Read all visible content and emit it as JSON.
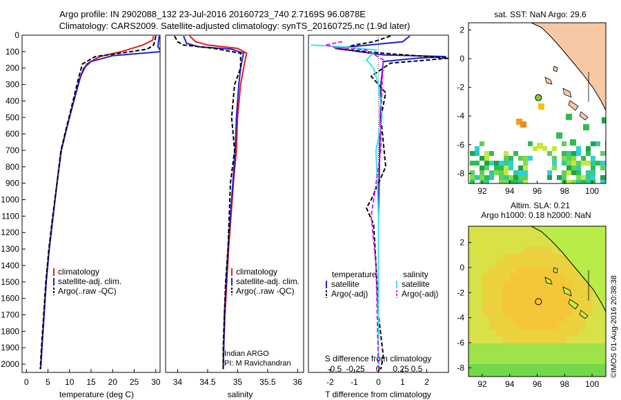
{
  "header": {
    "title_line1": "Argo profile: IN 2902088_132 23-Jul-2016 20160723_740 2.7169S 96.0878E",
    "title_line2": "Climatology: CARS2009. Satellite-adjusted climatology: synTS_20160725.nc (1.9d later)"
  },
  "colors": {
    "climatology": "#e41a1c",
    "satellite": "#1f1fd0",
    "argo": "#000000",
    "satellite_s": "#33e6ee",
    "argo_s": "#e01ee0",
    "land": "#f7c8a4"
  },
  "chart_data": [
    {
      "type": "line",
      "id": "temperature-profile",
      "xlabel": "temperature (deg C)",
      "ylim": [
        2050,
        0
      ],
      "xlim": [
        -1,
        31
      ],
      "xticks": [
        0,
        5,
        10,
        15,
        20,
        25,
        30
      ],
      "yticks": [
        0,
        100,
        200,
        300,
        400,
        500,
        600,
        700,
        800,
        900,
        1000,
        1100,
        1200,
        1300,
        1400,
        1500,
        1600,
        1700,
        1800,
        1900,
        2000
      ],
      "legend": [
        "climatology",
        "satellite-adj. clim.",
        "Argo(..raw -QC)"
      ],
      "series": [
        {
          "name": "climatology",
          "style": "solid",
          "color": "#e41a1c",
          "points": [
            [
              29.5,
              5
            ],
            [
              29.3,
              30
            ],
            [
              27,
              60
            ],
            [
              22,
              100
            ],
            [
              17,
              130
            ],
            [
              14,
              175
            ],
            [
              12.6,
              250
            ],
            [
              11,
              400
            ],
            [
              9.5,
              550
            ],
            [
              8.1,
              700
            ],
            [
              7.1,
              900
            ],
            [
              6.2,
              1100
            ],
            [
              5.3,
              1300
            ],
            [
              4.6,
              1500
            ],
            [
              4.1,
              1700
            ],
            [
              3.6,
              1900
            ],
            [
              3.3,
              2030
            ]
          ]
        },
        {
          "name": "satellite-adj. clim.",
          "style": "solid",
          "color": "#1f1fd0",
          "points": [
            [
              30.8,
              5
            ],
            [
              30.5,
              70
            ],
            [
              31.2,
              100
            ],
            [
              20,
              125
            ],
            [
              15,
              160
            ],
            [
              13.3,
              200
            ],
            [
              12.4,
              260
            ],
            [
              11,
              400
            ],
            [
              9.5,
              550
            ],
            [
              8.1,
              700
            ],
            [
              7.1,
              900
            ],
            [
              6.2,
              1100
            ],
            [
              5.3,
              1300
            ],
            [
              4.6,
              1500
            ],
            [
              4.1,
              1700
            ],
            [
              3.6,
              1900
            ],
            [
              3.3,
              2030
            ]
          ]
        },
        {
          "name": "Argo(..raw -QC)",
          "style": "dashed",
          "color": "#000000",
          "points": [
            [
              30,
              5
            ],
            [
              29.8,
              35
            ],
            [
              29.5,
              60
            ],
            [
              28,
              85
            ],
            [
              23,
              105
            ],
            [
              16,
              130
            ],
            [
              13,
              175
            ],
            [
              12.3,
              240
            ],
            [
              10.8,
              400
            ],
            [
              9.4,
              550
            ],
            [
              8,
              700
            ],
            [
              7.1,
              900
            ],
            [
              6.1,
              1100
            ],
            [
              5.2,
              1300
            ],
            [
              4.5,
              1500
            ],
            [
              4,
              1700
            ],
            [
              3.5,
              1900
            ],
            [
              3.2,
              2030
            ]
          ]
        }
      ]
    },
    {
      "type": "line",
      "id": "salinity-profile",
      "xlabel": "salinity",
      "ylim": [
        2050,
        0
      ],
      "xlim": [
        33.8,
        36.1
      ],
      "xticks": [
        34,
        34.5,
        35,
        35.5,
        36
      ],
      "legend": [
        "climatology",
        "satellite-adj. clim.",
        "Argo(..raw -QC)"
      ],
      "annotation": [
        "Indian ARGO",
        "PI: M Ravichandran"
      ],
      "series": [
        {
          "name": "climatology",
          "style": "solid",
          "color": "#e41a1c",
          "points": [
            [
              34.2,
              5
            ],
            [
              34.3,
              40
            ],
            [
              34.5,
              60
            ],
            [
              35,
              80
            ],
            [
              35.15,
              110
            ],
            [
              35.1,
              200
            ],
            [
              35.05,
              300
            ],
            [
              35,
              500
            ],
            [
              34.98,
              700
            ],
            [
              34.93,
              900
            ],
            [
              34.89,
              1100
            ],
            [
              34.85,
              1300
            ],
            [
              34.82,
              1500
            ],
            [
              34.79,
              1700
            ],
            [
              34.77,
              1900
            ],
            [
              34.76,
              2030
            ]
          ]
        },
        {
          "name": "satellite-adj. clim.",
          "style": "solid",
          "color": "#1f1fd0",
          "points": [
            [
              34.1,
              5
            ],
            [
              34.15,
              50
            ],
            [
              34.35,
              70
            ],
            [
              34.9,
              85
            ],
            [
              35.1,
              110
            ],
            [
              35.05,
              200
            ],
            [
              35.02,
              300
            ],
            [
              34.98,
              500
            ],
            [
              34.96,
              700
            ],
            [
              34.92,
              900
            ],
            [
              34.88,
              1100
            ],
            [
              34.84,
              1300
            ],
            [
              34.81,
              1500
            ],
            [
              34.78,
              1700
            ],
            [
              34.77,
              1900
            ],
            [
              34.76,
              2030
            ]
          ]
        },
        {
          "name": "Argo(..raw -QC)",
          "style": "dashed",
          "color": "#000000",
          "points": [
            [
              33.95,
              5
            ],
            [
              34,
              40
            ],
            [
              34.1,
              60
            ],
            [
              34.6,
              80
            ],
            [
              35.05,
              110
            ],
            [
              35.05,
              200
            ],
            [
              34.95,
              300
            ],
            [
              34.9,
              500
            ],
            [
              34.95,
              700
            ],
            [
              34.88,
              900
            ],
            [
              34.86,
              1100
            ],
            [
              34.84,
              1300
            ],
            [
              34.8,
              1500
            ],
            [
              34.78,
              1700
            ],
            [
              34.76,
              1900
            ],
            [
              34.76,
              2030
            ]
          ]
        }
      ]
    },
    {
      "type": "line",
      "id": "difference-profile",
      "xlabel": "T difference from climatology",
      "top_label": "S difference from climatology",
      "ylim": [
        2050,
        0
      ],
      "xlim": [
        -2.9,
        2.9
      ],
      "xticks_T": [
        -2,
        -1,
        0,
        1,
        2
      ],
      "xticks_S_labels": [
        "-0.5",
        "-0.25",
        "0",
        "0.25",
        "0.5"
      ],
      "legend_groups": {
        "left_title": "temperature",
        "right_title": "salinity",
        "left": [
          "satellite",
          "Argo(-adj)"
        ],
        "right": [
          "satellite",
          "Argo(-adj)"
        ]
      },
      "series": [
        {
          "name": "T satellite",
          "style": "solid",
          "color": "#1f1fd0",
          "points": [
            [
              1.3,
              5
            ],
            [
              1,
              40
            ],
            [
              -0.4,
              60
            ],
            [
              -1.8,
              80
            ],
            [
              0.2,
              120
            ],
            [
              2.8,
              130
            ],
            [
              1.6,
              140
            ],
            [
              0.2,
              160
            ],
            [
              0.1,
              300
            ],
            [
              0.05,
              700
            ],
            [
              0,
              1100
            ],
            [
              0,
              1500
            ],
            [
              0,
              2030
            ]
          ]
        },
        {
          "name": "T Argo(-adj)",
          "style": "dashed",
          "color": "#000000",
          "points": [
            [
              0.5,
              5
            ],
            [
              -0.2,
              40
            ],
            [
              -1,
              60
            ],
            [
              -1.6,
              85
            ],
            [
              0.2,
              110
            ],
            [
              2.9,
              140
            ],
            [
              0.5,
              170
            ],
            [
              -0.3,
              250
            ],
            [
              0.3,
              350
            ],
            [
              0.1,
              500
            ],
            [
              0.3,
              800
            ],
            [
              -0.3,
              1000
            ],
            [
              -0.5,
              1050
            ],
            [
              -0.2,
              1150
            ],
            [
              -0.1,
              1400
            ],
            [
              0,
              1700
            ],
            [
              0.2,
              1950
            ],
            [
              0.1,
              2030
            ]
          ]
        },
        {
          "name": "S satellite",
          "style": "solid",
          "color": "#33e6ee",
          "points": [
            [
              -2.8,
              60
            ],
            [
              -1.5,
              70
            ],
            [
              -0.1,
              90
            ],
            [
              -0.5,
              150
            ],
            [
              -0.2,
              200
            ],
            [
              0,
              300
            ],
            [
              0.15,
              500
            ],
            [
              -0.1,
              700
            ],
            [
              -0.05,
              900
            ],
            [
              0,
              1100
            ],
            [
              0,
              1500
            ],
            [
              0,
              2030
            ]
          ]
        },
        {
          "name": "S Argo(-adj)",
          "style": "dashed",
          "color": "#e01ee0",
          "points": [
            [
              -1.5,
              40
            ],
            [
              -2.2,
              60
            ],
            [
              -1.8,
              75
            ],
            [
              -0.5,
              90
            ],
            [
              0.2,
              150
            ],
            [
              0.15,
              300
            ],
            [
              0.1,
              500
            ],
            [
              0.1,
              700
            ],
            [
              -0.2,
              1000
            ],
            [
              -0.3,
              1100
            ],
            [
              -0.1,
              1400
            ],
            [
              0,
              2030
            ]
          ]
        }
      ]
    },
    {
      "type": "heatmap",
      "id": "sst-map",
      "title": "sat. SST: NaN Argo: 29.6",
      "xlim": [
        91,
        101
      ],
      "ylim": [
        -8.7,
        2.5
      ],
      "xticks": [
        92,
        94,
        96,
        98,
        100
      ],
      "yticks": [
        2,
        0,
        -2,
        -4,
        -6,
        -8
      ],
      "argo_position": [
        96.09,
        -2.72
      ]
    },
    {
      "type": "heatmap",
      "id": "sla-map",
      "title_line1": "Altim. SLA: 0.21",
      "title_line2": "Argo h1000: 0.18 h2000: NaN",
      "xlim": [
        91,
        101
      ],
      "ylim": [
        -8.7,
        3.3
      ],
      "xticks": [
        92,
        94,
        96,
        98,
        100
      ],
      "yticks": [
        2,
        0,
        -2,
        -4,
        -6,
        -8
      ],
      "argo_position": [
        96.09,
        -2.72
      ]
    }
  ],
  "footer": {
    "stamp": "©IMOS 01-Aug-2016 20:38:38"
  }
}
